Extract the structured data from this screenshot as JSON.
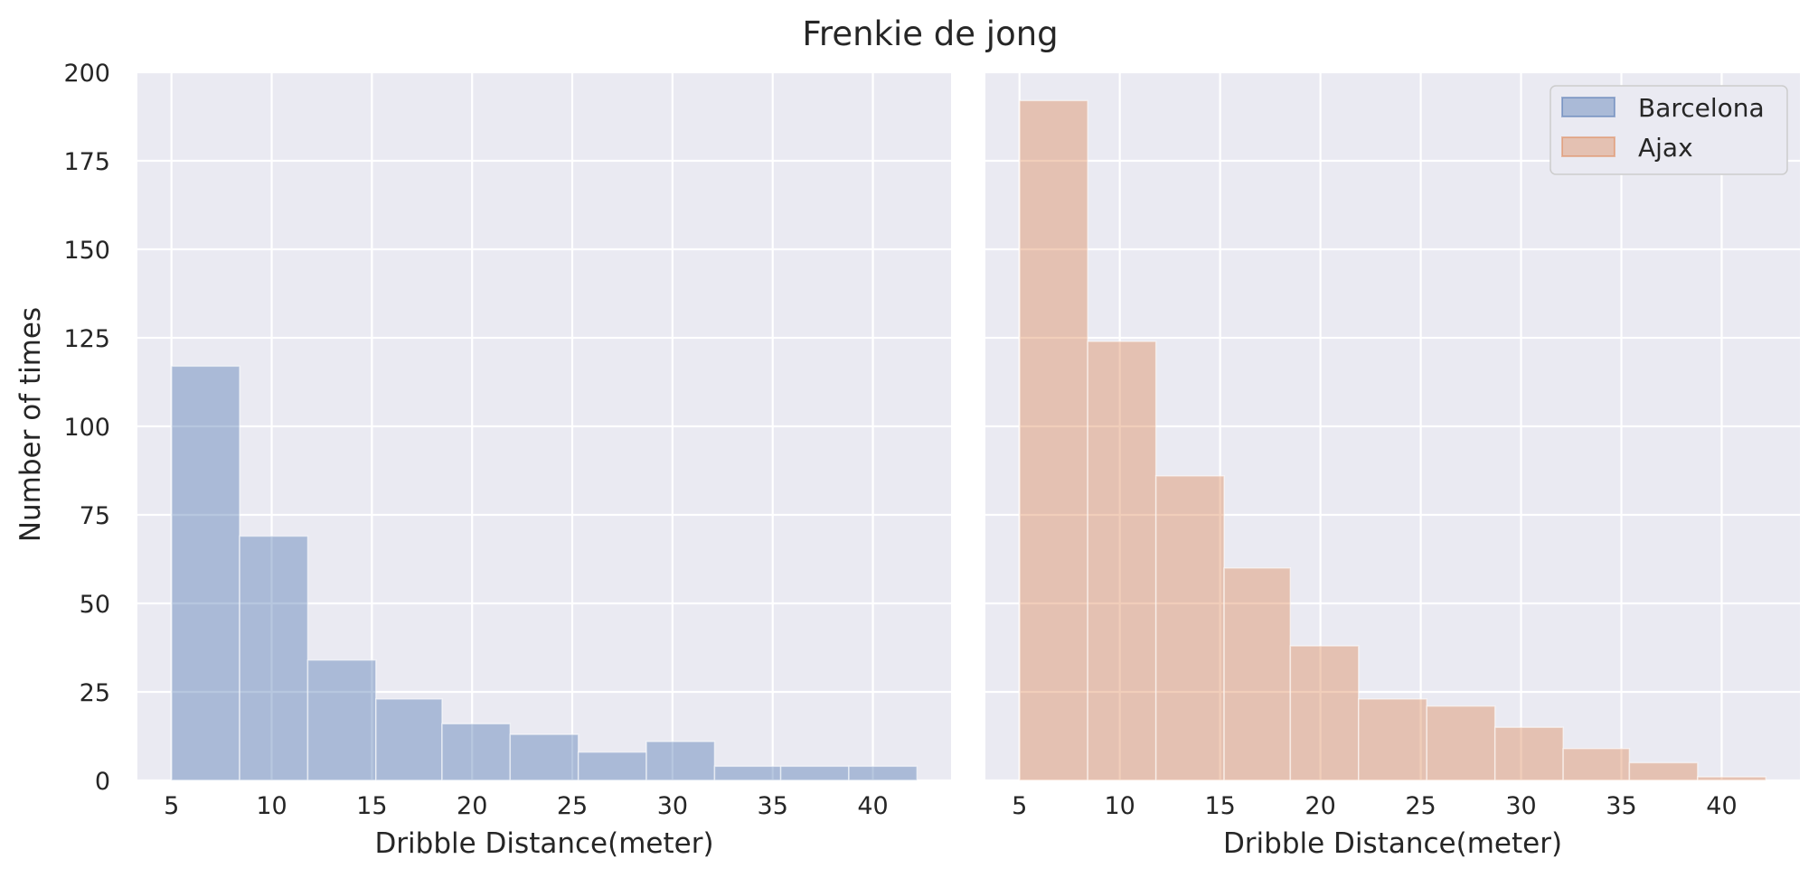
{
  "figure": {
    "title": "Frenkie de jong",
    "ylabel": "Number of times",
    "background": "#ffffff",
    "axes_background": "#eaeaf2",
    "grid_color": "#ffffff",
    "text_color": "#262626"
  },
  "chart_data": [
    {
      "type": "bar",
      "subtype": "histogram",
      "title": "",
      "xlabel": "Dribble Distance(meter)",
      "ylabel": "Number of times",
      "xlim": [
        3.3,
        43.9
      ],
      "ylim": [
        0,
        200
      ],
      "grid": true,
      "xticks": [
        "5",
        "10",
        "15",
        "20",
        "25",
        "30",
        "35",
        "40"
      ],
      "yticks": [
        "0",
        "25",
        "50",
        "75",
        "100",
        "125",
        "150",
        "175",
        "200"
      ],
      "series": [
        {
          "name": "Barcelona",
          "color": "#4c72b0",
          "alpha": 0.4,
          "bin_edges": [
            5.0,
            8.4,
            11.8,
            15.2,
            18.5,
            21.9,
            25.3,
            28.7,
            32.1,
            35.4,
            38.8,
            42.2
          ],
          "values": [
            117,
            69,
            34,
            23,
            16,
            13,
            8,
            11,
            4,
            4,
            4
          ]
        }
      ]
    },
    {
      "type": "bar",
      "subtype": "histogram",
      "title": "",
      "xlabel": "Dribble Distance(meter)",
      "ylabel": "",
      "xlim": [
        3.3,
        43.9
      ],
      "ylim": [
        0,
        200
      ],
      "grid": true,
      "legend_position": "top-right",
      "xticks": [
        "5",
        "10",
        "15",
        "20",
        "25",
        "30",
        "35",
        "40"
      ],
      "yticks": [
        "0",
        "25",
        "50",
        "75",
        "100",
        "125",
        "150",
        "175",
        "200"
      ],
      "series": [
        {
          "name": "Ajax",
          "color": "#dd8452",
          "alpha": 0.4,
          "bin_edges": [
            5.0,
            8.4,
            11.8,
            15.2,
            18.5,
            21.9,
            25.3,
            28.7,
            32.1,
            35.4,
            38.8,
            42.2
          ],
          "values": [
            192,
            124,
            86,
            60,
            38,
            23,
            21,
            15,
            9,
            5,
            1
          ]
        }
      ]
    }
  ],
  "legend": {
    "items": [
      {
        "label": "Barcelona",
        "color": "#4c72b0"
      },
      {
        "label": "Ajax",
        "color": "#dd8452"
      }
    ]
  }
}
